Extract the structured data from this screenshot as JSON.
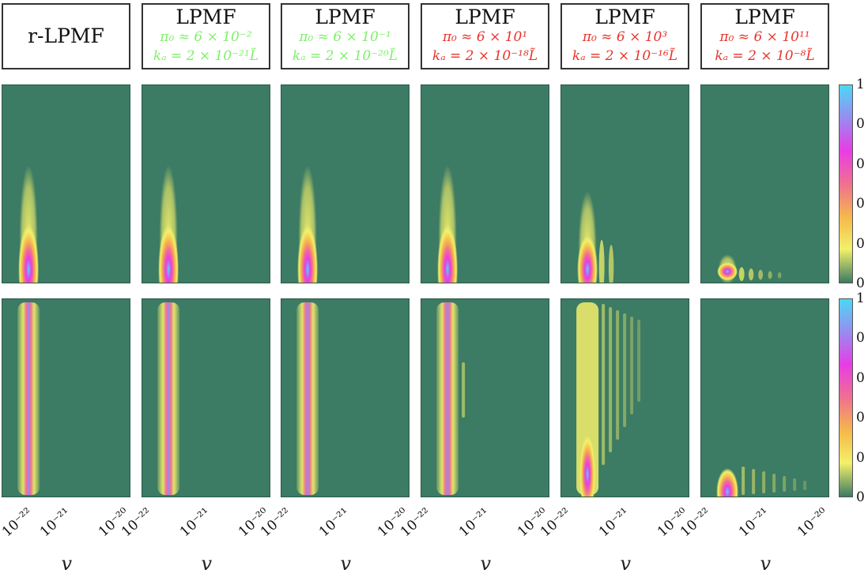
{
  "headers": [
    {
      "title": "r-LPMF",
      "lines": []
    },
    {
      "title": "LPMF",
      "lines": [
        "π₀ ≈ 6 × 10⁻²",
        "kₐ = 2 × 10⁻²¹L̃"
      ],
      "color": "#7ef06a"
    },
    {
      "title": "LPMF",
      "lines": [
        "π₀ ≈ 6 × 10⁻¹",
        "kₐ = 2 × 10⁻²⁰L̃"
      ],
      "color": "#7ef06a"
    },
    {
      "title": "LPMF",
      "lines": [
        "π₀ ≈ 6 × 10¹",
        "kₐ = 2 × 10⁻¹⁸L̃"
      ],
      "color": "#e8342c"
    },
    {
      "title": "LPMF",
      "lines": [
        "π₀ ≈ 6 × 10³",
        "kₐ = 2 × 10⁻¹⁶L̃"
      ],
      "color": "#e8342c"
    },
    {
      "title": "LPMF",
      "lines": [
        "π₀ ≈ 6 × 10¹¹",
        "kₐ = 2 × 10⁻⁸L̃"
      ],
      "color": "#e8342c"
    }
  ],
  "colors": {
    "background": "#3c7b64",
    "colormap": [
      "#3c7b64",
      "#f3f06a",
      "#f5b94a",
      "#f07090",
      "#e83ce6",
      "#9a8af0",
      "#4cd8f5"
    ]
  },
  "chart_data": {
    "type": "heatmap",
    "grid": "2x6",
    "xlabel": "v",
    "x_scale": "log",
    "x_tick_labels": [
      "10⁻²²",
      "10⁻²¹",
      "10⁻²⁰"
    ],
    "x_tick_values": [
      1e-22,
      1e-21,
      1e-20
    ],
    "colorbar": {
      "range": [
        0,
        1
      ],
      "tick_labels": [
        "1",
        "0",
        "0",
        "0",
        "0",
        "0"
      ]
    },
    "top_row": [
      {
        "peak_v": 2.8e-22,
        "peak_y": 0.05,
        "extent_v": 4e-22,
        "extent_y": 0.5,
        "fringes": 0
      },
      {
        "peak_v": 2.8e-22,
        "peak_y": 0.05,
        "extent_v": 4e-22,
        "extent_y": 0.5,
        "fringes": 0
      },
      {
        "peak_v": 2.8e-22,
        "peak_y": 0.05,
        "extent_v": 4e-22,
        "extent_y": 0.5,
        "fringes": 0
      },
      {
        "peak_v": 2.8e-22,
        "peak_y": 0.05,
        "extent_v": 4e-22,
        "extent_y": 0.5,
        "fringes": 0
      },
      {
        "peak_v": 2.8e-22,
        "peak_y": 0.05,
        "extent_v": 4e-22,
        "extent_y": 0.38,
        "fringes": 2
      },
      {
        "peak_v": 2.8e-22,
        "peak_y": 0.04,
        "extent_v": 4e-22,
        "extent_y": 0.1,
        "fringes": 5
      }
    ],
    "bottom_row": [
      {
        "peak_v": 2.8e-22,
        "band": "full",
        "fringes": 0
      },
      {
        "peak_v": 2.8e-22,
        "band": "full",
        "fringes": 0
      },
      {
        "peak_v": 2.8e-22,
        "band": "full",
        "fringes": 0
      },
      {
        "peak_v": 2.8e-22,
        "band": "full",
        "fringes": 1
      },
      {
        "peak_v": 2.8e-22,
        "band": "partial",
        "fringes": 6
      },
      {
        "peak_v": 2.8e-22,
        "band": "low",
        "fringes": 7
      }
    ]
  }
}
